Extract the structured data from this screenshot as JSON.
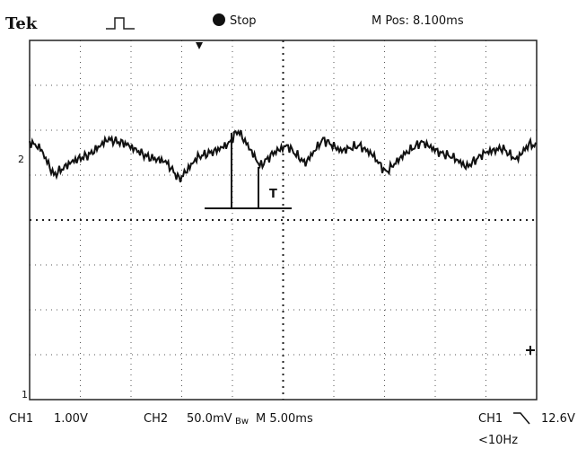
{
  "header": {
    "brand": "Tek",
    "status": "Stop",
    "position": "M Pos: 8.100ms"
  },
  "screen": {
    "ch2_marker": "2",
    "ch1_marker": "1",
    "annotation": "T"
  },
  "footer": {
    "ch1_label": "CH1",
    "ch1_scale": "1.00V",
    "ch2_label": "CH2",
    "ch2_scale": "50.0mV",
    "ch2_bw": "Bw",
    "timebase": "M 5.00ms",
    "trigger_source": "CH1",
    "trigger_level": "12.6V",
    "trigger_freq": "<10Hz"
  }
}
